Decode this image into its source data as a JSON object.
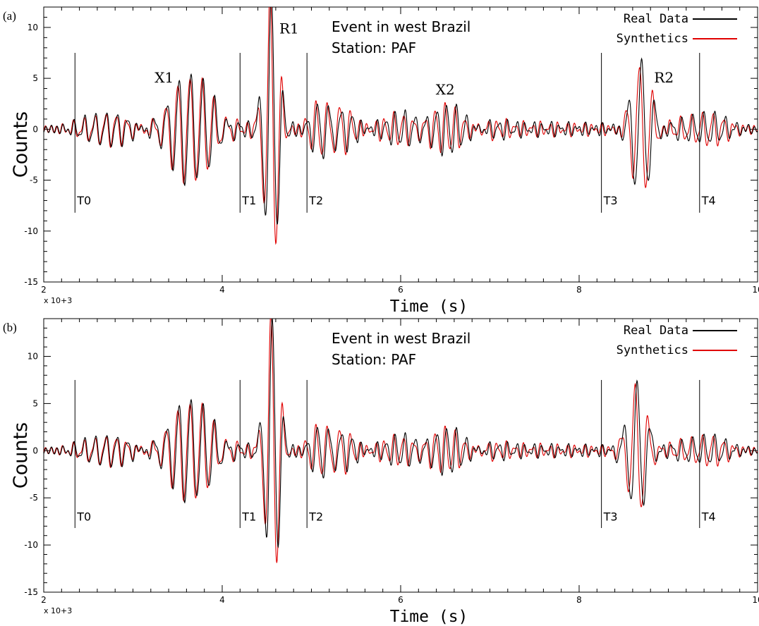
{
  "chart_data": [
    {
      "panel": "(a)",
      "type": "line",
      "title": [
        "Event in west Brazil",
        "Station: PAF"
      ],
      "xlabel": "Time (s)",
      "ylabel": "Counts",
      "x_multiplier": "x 10+3",
      "xlim": [
        2000,
        10000
      ],
      "ylim": [
        -15,
        12
      ],
      "xticks": [
        2,
        4,
        6,
        8,
        10
      ],
      "yticks": [
        10,
        5,
        0,
        -5,
        -10,
        -15
      ],
      "legend": {
        "placement": "top-right",
        "entries": [
          {
            "name": "Real Data",
            "color": "#000000"
          },
          {
            "name": "Synthetics",
            "color": "#e00000"
          }
        ]
      },
      "markers": [
        {
          "label": "T0",
          "x": 2350
        },
        {
          "label": "T1",
          "x": 4200
        },
        {
          "label": "T2",
          "x": 4950
        },
        {
          "label": "T3",
          "x": 8250
        },
        {
          "label": "T4",
          "x": 9350
        }
      ],
      "phase_labels": [
        {
          "label": "X1",
          "x": 3350,
          "y": 4.6
        },
        {
          "label": "R1",
          "x": 4750,
          "y": 9.4
        },
        {
          "label": "X2",
          "x": 6500,
          "y": 3.4
        },
        {
          "label": "R2",
          "x": 8950,
          "y": 4.6
        }
      ],
      "packets": [
        {
          "center": 2700,
          "width": 350,
          "amp": 1.6,
          "period": 120
        },
        {
          "center": 3650,
          "width": 320,
          "amp": 5.5,
          "period": 135
        },
        {
          "center": 4550,
          "width": 110,
          "amp": 13.5,
          "period": 140
        },
        {
          "center": 5200,
          "width": 250,
          "amp": 2.6,
          "period": 130
        },
        {
          "center": 6400,
          "width": 500,
          "amp": 1.9,
          "period": 115
        },
        {
          "center": 8700,
          "width": 150,
          "amp": 6.8,
          "period": 150
        },
        {
          "center": 9400,
          "width": 350,
          "amp": 1.5,
          "period": 120
        }
      ]
    },
    {
      "panel": "(b)",
      "type": "line",
      "title": [
        "Event in west Brazil",
        "Station: PAF"
      ],
      "xlabel": "Time (s)",
      "ylabel": "Counts",
      "x_multiplier": "x 10+3",
      "xlim": [
        2000,
        10000
      ],
      "ylim": [
        -15,
        14
      ],
      "xticks": [
        2,
        4,
        6,
        8,
        10
      ],
      "yticks": [
        10,
        5,
        0,
        -5,
        -10,
        -15
      ],
      "legend": {
        "placement": "top-right",
        "entries": [
          {
            "name": "Real Data",
            "color": "#000000"
          },
          {
            "name": "Synthetics",
            "color": "#e00000"
          }
        ]
      },
      "markers": [
        {
          "label": "T0",
          "x": 2350
        },
        {
          "label": "T1",
          "x": 4200
        },
        {
          "label": "T2",
          "x": 4950
        },
        {
          "label": "T3",
          "x": 8250
        },
        {
          "label": "T4",
          "x": 9350
        }
      ],
      "phase_labels": [],
      "packets": [
        {
          "center": 2700,
          "width": 350,
          "amp": 1.6,
          "period": 120
        },
        {
          "center": 3650,
          "width": 320,
          "amp": 5.5,
          "period": 135
        },
        {
          "center": 4560,
          "width": 110,
          "amp": 14.0,
          "period": 140
        },
        {
          "center": 5200,
          "width": 250,
          "amp": 2.6,
          "period": 130
        },
        {
          "center": 6400,
          "width": 500,
          "amp": 1.9,
          "period": 115
        },
        {
          "center": 8650,
          "width": 150,
          "amp": 7.0,
          "period": 150
        },
        {
          "center": 9400,
          "width": 350,
          "amp": 1.5,
          "period": 120
        }
      ]
    }
  ]
}
